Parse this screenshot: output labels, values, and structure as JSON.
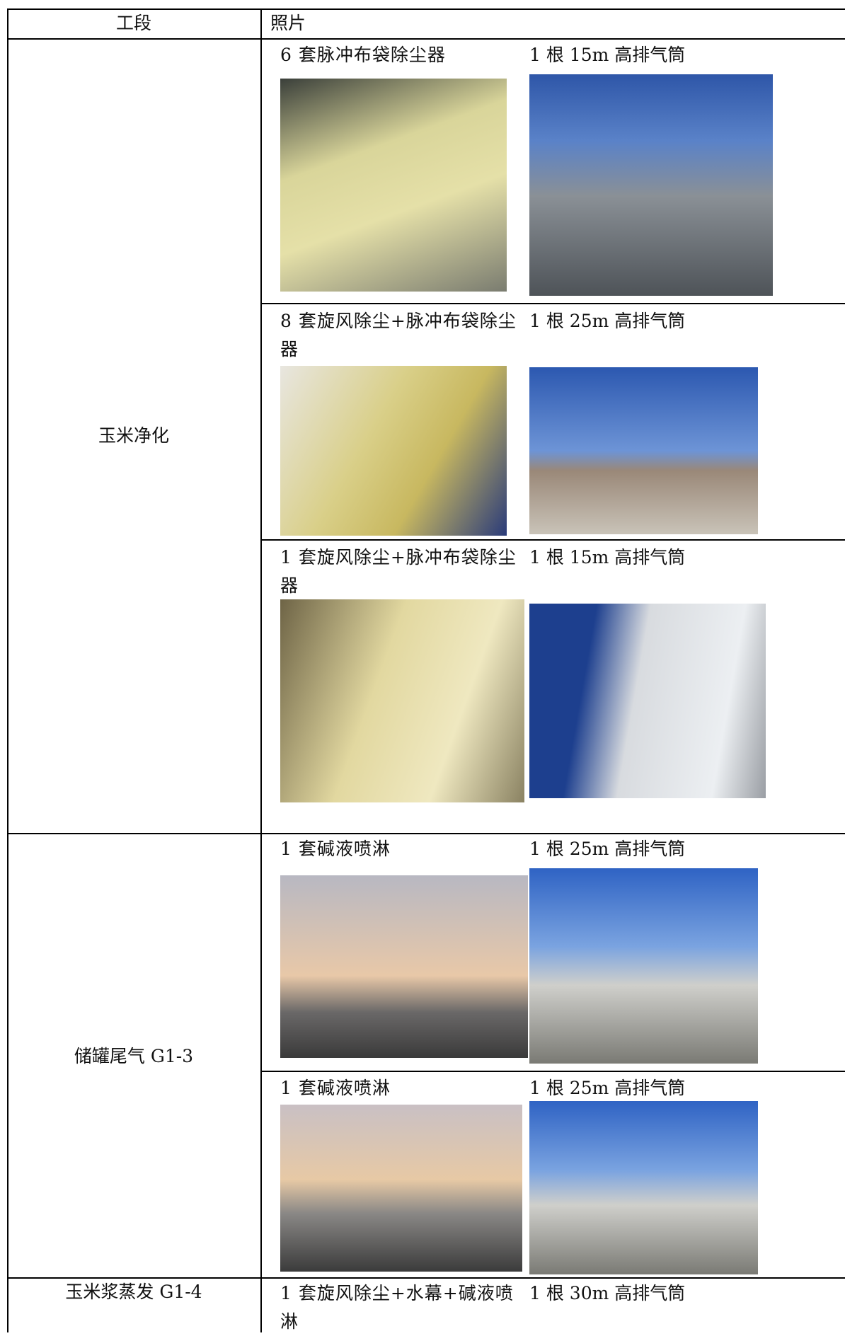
{
  "table": {
    "header": [
      "工段",
      "照片"
    ],
    "rows": [
      {
        "section": "玉米净化",
        "items": [
          {
            "left": "6 套脉冲布袋除尘器",
            "right": "1 根 15m 高排气筒"
          },
          {
            "left": "8 套旋风除尘+脉冲布袋除尘器",
            "right": "1 根 25m 高排气筒"
          },
          {
            "left": "1 套旋风除尘+脉冲布袋除尘器",
            "right": "1 根 15m 高排气筒"
          }
        ]
      },
      {
        "section": "储罐尾气 G1-3",
        "items": [
          {
            "left": "1 套碱液喷淋",
            "right": "1 根 25m 高排气筒"
          },
          {
            "left": "1 套碱液喷淋",
            "right": "1 根 25m 高排气筒"
          }
        ]
      },
      {
        "section": "玉米浆蒸发 G1-4",
        "items": [
          {
            "left": "1 套旋风除尘+水幕+碱液喷淋",
            "right": "1 根 30m 高排气筒"
          }
        ]
      }
    ]
  }
}
